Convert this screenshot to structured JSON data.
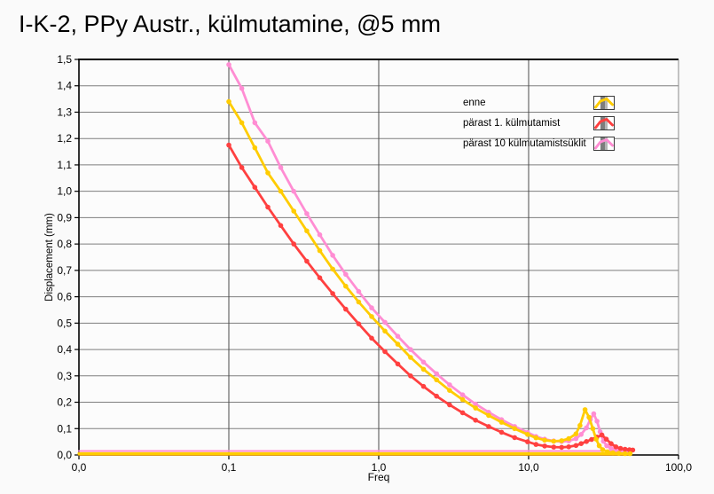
{
  "title": "I-K-2, PPy Austr., külmutamine, @5 mm",
  "colors": {
    "background": "#fafafa",
    "plot_background": "#fcfcfc",
    "grid_horizontal": "#7e7e7e",
    "grid_vertical": "#4a4a4a",
    "frame": "#000000",
    "frame_right": "#8a8a8a",
    "text": "#000000",
    "series_enne": "#ffcc00",
    "series_parast1": "#ff4040",
    "series_parast10": "#ff8dd3",
    "baseline_orange": "#ffa000"
  },
  "chart_data": {
    "type": "line",
    "title": "I-K-2, PPy Austr., külmutamine, @5 mm",
    "xlabel": "Freq",
    "ylabel": "Displacement (mm)",
    "x_scale": "log",
    "xlim": [
      0.01,
      100
    ],
    "ylim": [
      0,
      1.5
    ],
    "grid": true,
    "legend_position": "inside-top-right",
    "x_ticks": [
      {
        "value": 0.01,
        "label": "0,0"
      },
      {
        "value": 0.1,
        "label": "0,1"
      },
      {
        "value": 1,
        "label": "1,0"
      },
      {
        "value": 10,
        "label": "10,0"
      },
      {
        "value": 100,
        "label": "100,0"
      }
    ],
    "y_ticks": [
      {
        "value": 0.0,
        "label": "0,0"
      },
      {
        "value": 0.1,
        "label": "0,1"
      },
      {
        "value": 0.2,
        "label": "0,2"
      },
      {
        "value": 0.3,
        "label": "0,3"
      },
      {
        "value": 0.4,
        "label": "0,4"
      },
      {
        "value": 0.5,
        "label": "0,5"
      },
      {
        "value": 0.6,
        "label": "0,6"
      },
      {
        "value": 0.7,
        "label": "0,7"
      },
      {
        "value": 0.8,
        "label": "0,8"
      },
      {
        "value": 0.9,
        "label": "0,9"
      },
      {
        "value": 1.0,
        "label": "1,0"
      },
      {
        "value": 1.1,
        "label": "1,1"
      },
      {
        "value": 1.2,
        "label": "1,2"
      },
      {
        "value": 1.3,
        "label": "1,3"
      },
      {
        "value": 1.4,
        "label": "1,4"
      },
      {
        "value": 1.5,
        "label": "1,5"
      }
    ],
    "series": [
      {
        "name": "enne",
        "color": "#ffcc00",
        "points": [
          [
            0.1,
            1.34
          ],
          [
            0.122,
            1.26
          ],
          [
            0.149,
            1.165
          ],
          [
            0.182,
            1.07
          ],
          [
            0.222,
            1.0
          ],
          [
            0.271,
            0.925
          ],
          [
            0.331,
            0.85
          ],
          [
            0.404,
            0.775
          ],
          [
            0.493,
            0.705
          ],
          [
            0.602,
            0.64
          ],
          [
            0.735,
            0.58
          ],
          [
            0.897,
            0.525
          ],
          [
            1.1,
            0.47
          ],
          [
            1.34,
            0.42
          ],
          [
            1.63,
            0.37
          ],
          [
            1.99,
            0.325
          ],
          [
            2.43,
            0.285
          ],
          [
            2.97,
            0.245
          ],
          [
            3.63,
            0.21
          ],
          [
            4.43,
            0.178
          ],
          [
            5.41,
            0.15
          ],
          [
            6.6,
            0.124
          ],
          [
            8.06,
            0.1
          ],
          [
            9.84,
            0.078
          ],
          [
            11.2,
            0.065
          ],
          [
            12.8,
            0.056
          ],
          [
            14.7,
            0.052
          ],
          [
            16.6,
            0.054
          ],
          [
            18.5,
            0.062
          ],
          [
            20.7,
            0.08
          ],
          [
            22.0,
            0.112
          ],
          [
            23.8,
            0.172
          ],
          [
            25.3,
            0.143
          ],
          [
            26.8,
            0.1
          ],
          [
            28.2,
            0.06
          ],
          [
            29.6,
            0.035
          ],
          [
            31.2,
            0.02
          ],
          [
            33.5,
            0.012
          ],
          [
            36.5,
            0.008
          ],
          [
            40,
            0.006
          ],
          [
            44,
            0.005
          ],
          [
            47.5,
            0.005
          ]
        ]
      },
      {
        "name": "pärast 1. külmutamist",
        "color": "#ff4040",
        "points": [
          [
            0.1,
            1.175
          ],
          [
            0.122,
            1.09
          ],
          [
            0.149,
            1.015
          ],
          [
            0.182,
            0.94
          ],
          [
            0.222,
            0.87
          ],
          [
            0.271,
            0.8
          ],
          [
            0.331,
            0.735
          ],
          [
            0.404,
            0.672
          ],
          [
            0.493,
            0.612
          ],
          [
            0.602,
            0.553
          ],
          [
            0.735,
            0.497
          ],
          [
            0.897,
            0.443
          ],
          [
            1.1,
            0.392
          ],
          [
            1.34,
            0.345
          ],
          [
            1.63,
            0.3
          ],
          [
            1.99,
            0.26
          ],
          [
            2.43,
            0.223
          ],
          [
            2.97,
            0.19
          ],
          [
            3.63,
            0.16
          ],
          [
            4.43,
            0.132
          ],
          [
            5.41,
            0.108
          ],
          [
            6.6,
            0.086
          ],
          [
            8.06,
            0.066
          ],
          [
            9.84,
            0.05
          ],
          [
            11.2,
            0.04
          ],
          [
            12.8,
            0.034
          ],
          [
            14.7,
            0.03
          ],
          [
            16.6,
            0.029
          ],
          [
            18.5,
            0.031
          ],
          [
            20.7,
            0.036
          ],
          [
            22.4,
            0.043
          ],
          [
            24.3,
            0.051
          ],
          [
            26.3,
            0.059
          ],
          [
            28.5,
            0.068
          ],
          [
            30.8,
            0.076
          ],
          [
            33,
            0.06
          ],
          [
            35.5,
            0.043
          ],
          [
            38.2,
            0.031
          ],
          [
            41,
            0.025
          ],
          [
            44,
            0.022
          ],
          [
            47,
            0.02
          ],
          [
            49.5,
            0.019
          ]
        ]
      },
      {
        "name": "pärast 10 külmutamistsüklit",
        "color": "#ff8dd3",
        "points": [
          [
            0.1,
            1.48
          ],
          [
            0.122,
            1.39
          ],
          [
            0.149,
            1.26
          ],
          [
            0.182,
            1.19
          ],
          [
            0.222,
            1.09
          ],
          [
            0.271,
            1.0
          ],
          [
            0.331,
            0.915
          ],
          [
            0.404,
            0.835
          ],
          [
            0.493,
            0.757
          ],
          [
            0.602,
            0.685
          ],
          [
            0.735,
            0.62
          ],
          [
            0.897,
            0.558
          ],
          [
            1.1,
            0.503
          ],
          [
            1.34,
            0.45
          ],
          [
            1.63,
            0.4
          ],
          [
            1.99,
            0.352
          ],
          [
            2.43,
            0.308
          ],
          [
            2.97,
            0.266
          ],
          [
            3.63,
            0.228
          ],
          [
            4.43,
            0.193
          ],
          [
            5.41,
            0.162
          ],
          [
            6.6,
            0.134
          ],
          [
            8.06,
            0.108
          ],
          [
            9.84,
            0.085
          ],
          [
            11.2,
            0.07
          ],
          [
            12.8,
            0.06
          ],
          [
            14.7,
            0.053
          ],
          [
            16.6,
            0.051
          ],
          [
            18.5,
            0.053
          ],
          [
            20.7,
            0.062
          ],
          [
            22.4,
            0.078
          ],
          [
            24.3,
            0.103
          ],
          [
            25.8,
            0.135
          ],
          [
            27.2,
            0.156
          ],
          [
            28.6,
            0.128
          ],
          [
            30,
            0.088
          ],
          [
            31.6,
            0.052
          ],
          [
            33.2,
            0.035
          ],
          [
            35.5,
            0.025
          ],
          [
            38,
            0.021
          ],
          [
            41,
            0.018
          ],
          [
            44,
            0.017
          ],
          [
            47,
            0.016
          ]
        ]
      }
    ],
    "baselines": [
      {
        "series": "pärast 10 külmutamistsüklit",
        "color": "#ff8dd3",
        "value": 0.015,
        "x_start": 0.01,
        "x_end": 47
      },
      {
        "series": "enne-edge",
        "color": "#ffa000",
        "value": 0.001,
        "x_start": 0.01,
        "x_end": 47
      },
      {
        "series": "enne",
        "color": "#ffcc00",
        "value": 0.005,
        "x_start": 0.01,
        "x_end": 47
      }
    ]
  }
}
